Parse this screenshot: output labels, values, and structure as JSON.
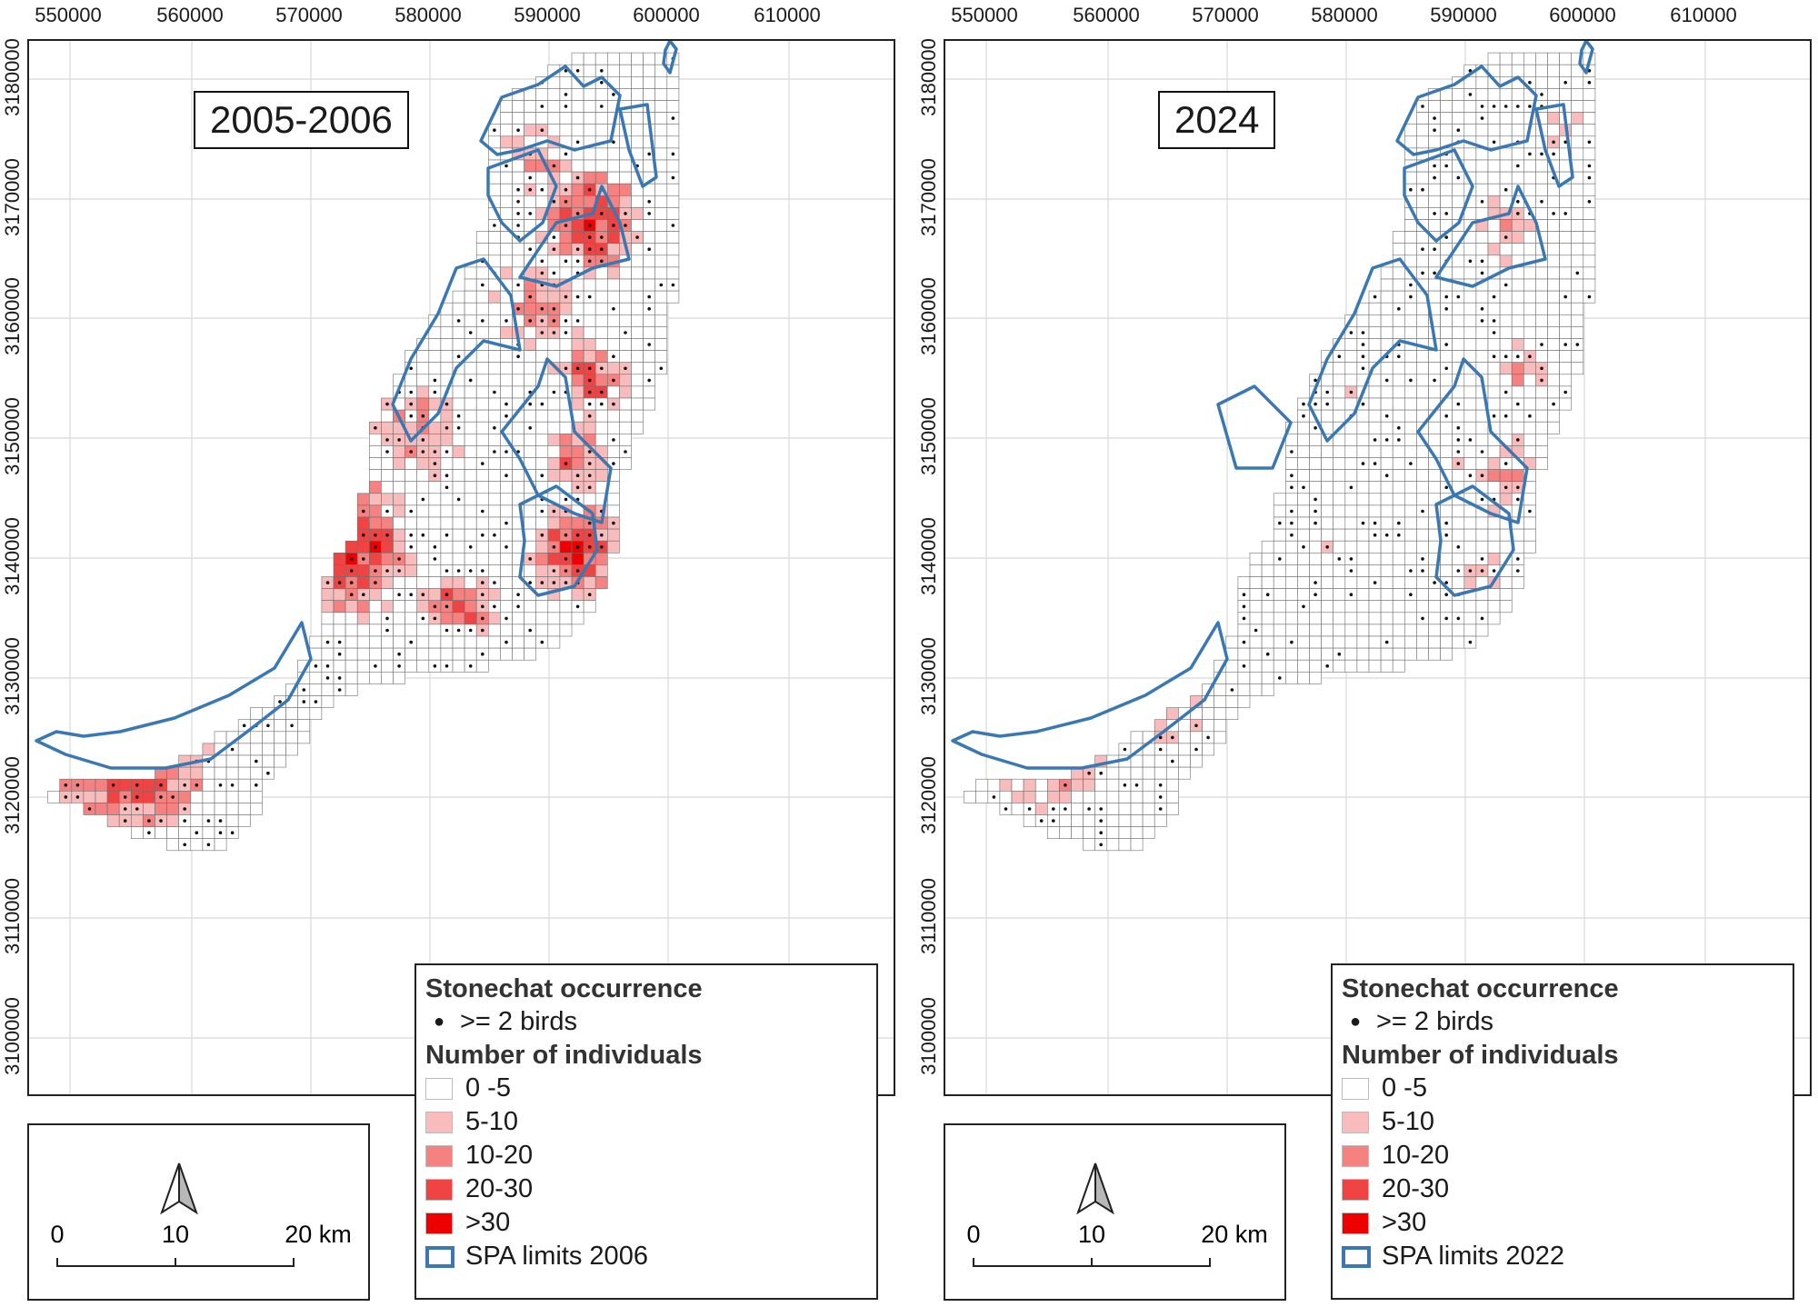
{
  "x_ticks": [
    "550000",
    "560000",
    "570000",
    "580000",
    "590000",
    "600000",
    "610000"
  ],
  "y_ticks": [
    "3180000",
    "3170000",
    "3160000",
    "3150000",
    "3140000",
    "3130000",
    "3120000",
    "3110000",
    "3100000"
  ],
  "legend": {
    "title_occurrence": "Stonechat occurrence",
    "dot_label": ">= 2 birds",
    "title_individuals": "Number of individuals",
    "classes": [
      {
        "label": "0 -5",
        "color": "#ffffff"
      },
      {
        "label": "5-10",
        "color": "#f9bcbc"
      },
      {
        "label": "10-20",
        "color": "#f58181"
      },
      {
        "label": "20-30",
        "color": "#f04444"
      },
      {
        "label": ">30",
        "color": "#ee0000"
      }
    ]
  },
  "spa_color": "#3a78b3",
  "scale_bar": {
    "labels": [
      "0",
      "10",
      "20 km"
    ]
  },
  "panels": [
    {
      "id": "left",
      "period": "2005-2006",
      "spa_label": "SPA limits 2006"
    },
    {
      "id": "right",
      "period": "2024",
      "spa_label": "SPA limits 2022"
    }
  ]
}
